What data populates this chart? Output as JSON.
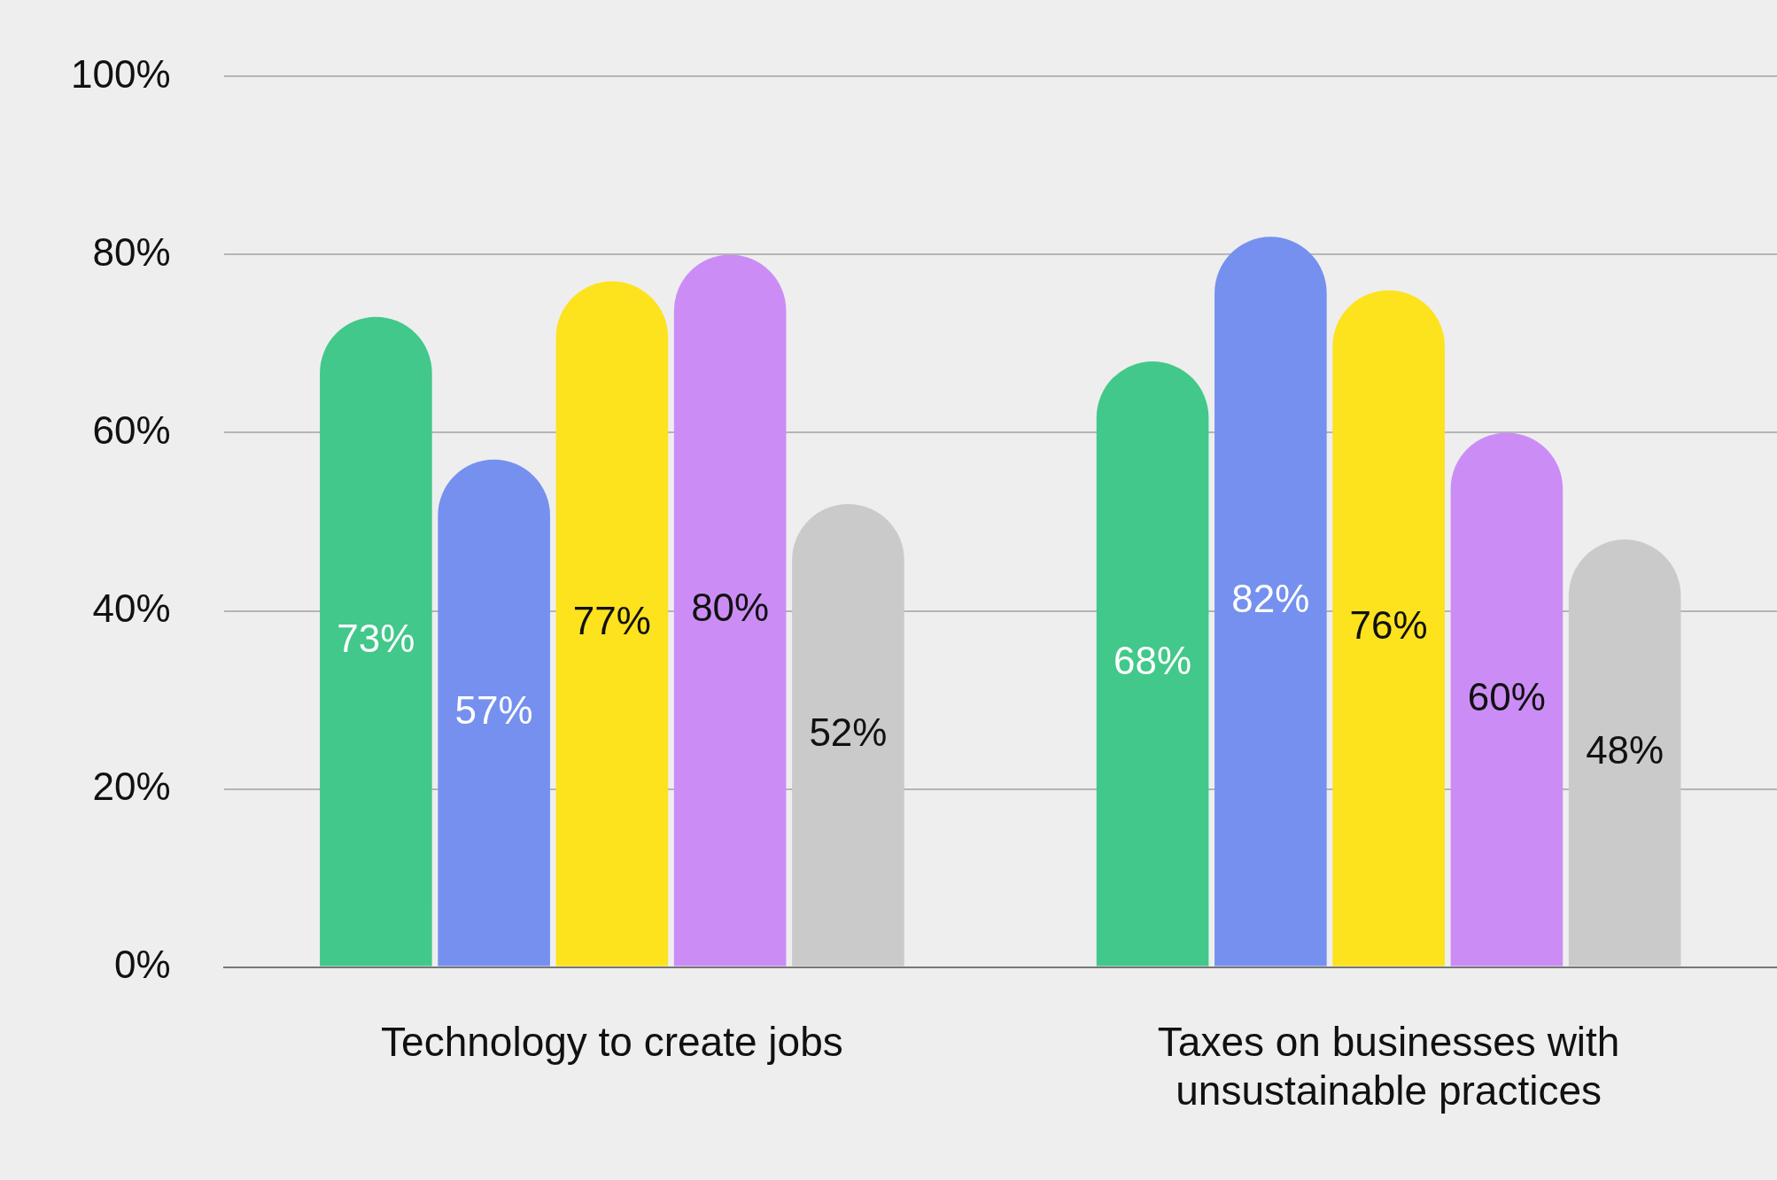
{
  "chart_data": {
    "type": "bar",
    "categories": [
      "Technology to create jobs",
      "Taxes on businesses with unsustainable practices"
    ],
    "series": [
      {
        "color": "#42c88a",
        "values": [
          73,
          68
        ],
        "value_labels": [
          "73%",
          "68%"
        ]
      },
      {
        "color": "#7590ee",
        "values": [
          57,
          82
        ],
        "value_labels": [
          "57%",
          "82%"
        ]
      },
      {
        "color": "#fde21e",
        "values": [
          77,
          76
        ],
        "value_labels": [
          "77%",
          "76%"
        ]
      },
      {
        "color": "#cb8df5",
        "values": [
          80,
          60
        ],
        "value_labels": [
          "80%",
          "60%"
        ]
      },
      {
        "color": "#cacaca",
        "values": [
          52,
          48
        ],
        "value_labels": [
          "52%",
          "48%"
        ]
      }
    ],
    "ylim": [
      0,
      100
    ],
    "yticks": [
      {
        "value": 0,
        "label": "0%"
      },
      {
        "value": 20,
        "label": "20%"
      },
      {
        "value": 40,
        "label": "40%"
      },
      {
        "value": 60,
        "label": "60%"
      },
      {
        "value": 80,
        "label": "80%"
      },
      {
        "value": 100,
        "label": "100%"
      }
    ],
    "grid": "y",
    "legend": false
  }
}
